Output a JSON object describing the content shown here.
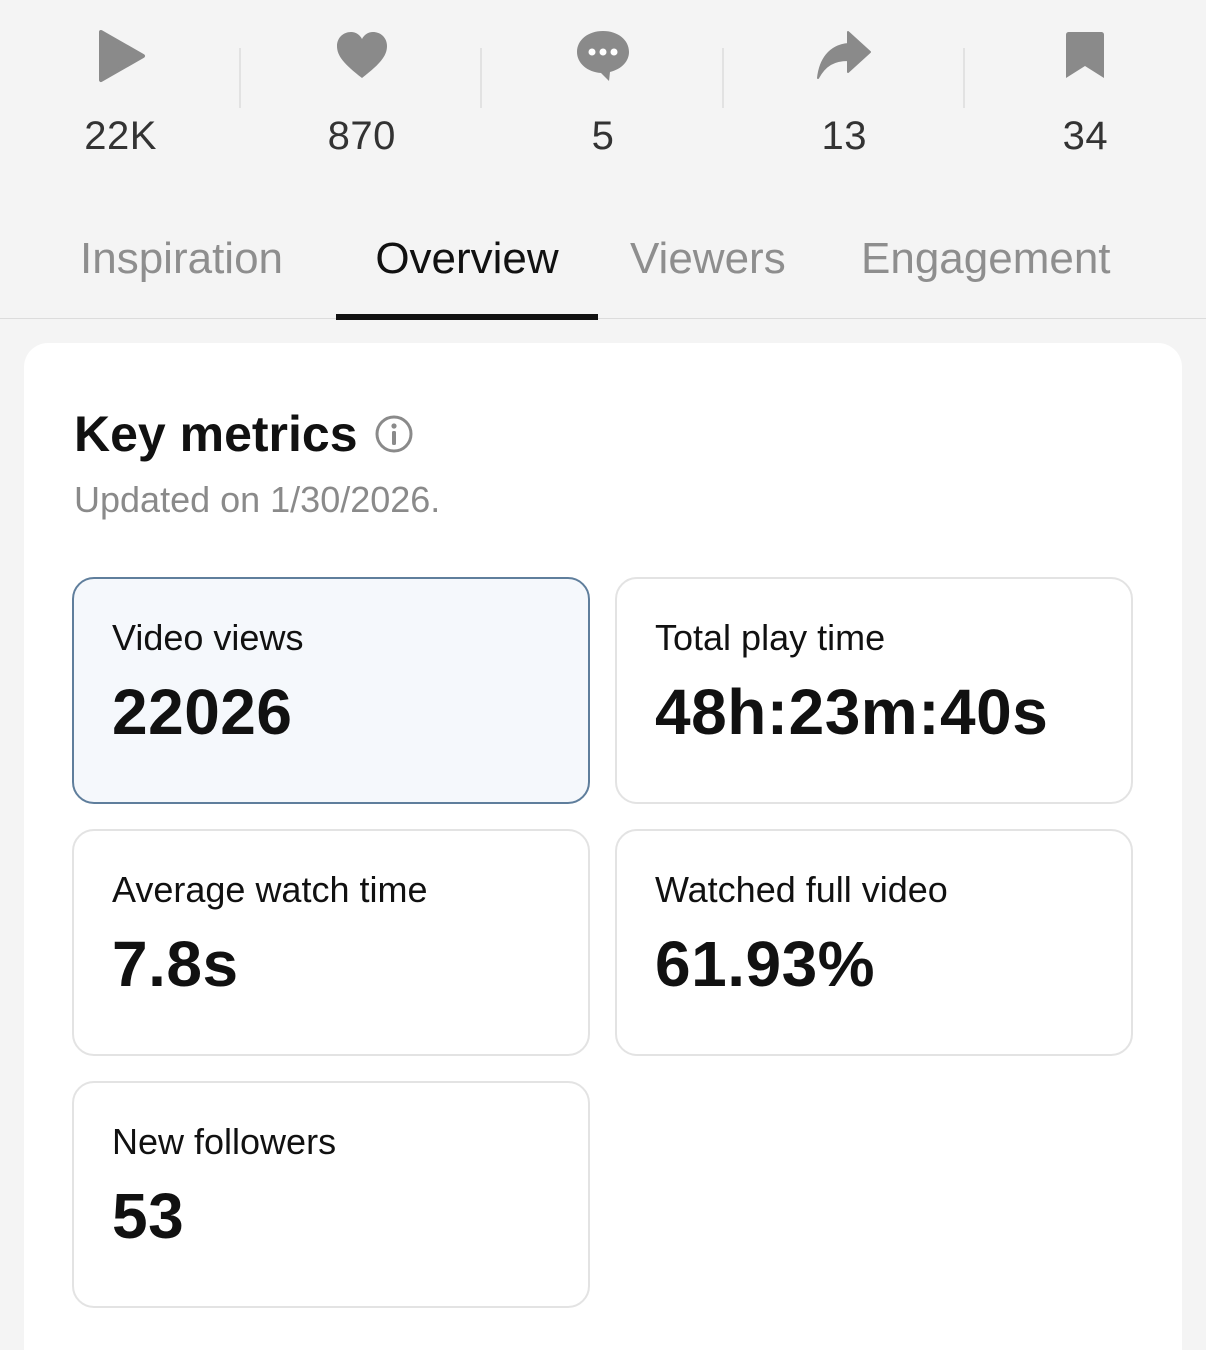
{
  "stats": [
    {
      "icon": "play-icon",
      "count": "22K"
    },
    {
      "icon": "heart-icon",
      "count": "870"
    },
    {
      "icon": "comment-icon",
      "count": "5"
    },
    {
      "icon": "share-icon",
      "count": "13"
    },
    {
      "icon": "bookmark-icon",
      "count": "34"
    }
  ],
  "tabs": [
    {
      "label": "Inspiration",
      "active": false
    },
    {
      "label": "Overview",
      "active": true
    },
    {
      "label": "Viewers",
      "active": false
    },
    {
      "label": "Engagement",
      "active": false
    }
  ],
  "key_metrics": {
    "title": "Key metrics",
    "updated": "Updated on 1/30/2026.",
    "metrics": [
      {
        "label": "Video views",
        "value": "22026",
        "selected": true
      },
      {
        "label": "Total play time",
        "value": "48h:23m:40s",
        "selected": false
      },
      {
        "label": "Average watch time",
        "value": "7.8s",
        "selected": false
      },
      {
        "label": "Watched full video",
        "value": "61.93%",
        "selected": false
      },
      {
        "label": "New followers",
        "value": "53",
        "selected": false
      }
    ]
  },
  "colors": {
    "icon_gray": "#8a8a8a",
    "selected_border": "#5f7e9c",
    "selected_bg": "#f5f8fc"
  }
}
